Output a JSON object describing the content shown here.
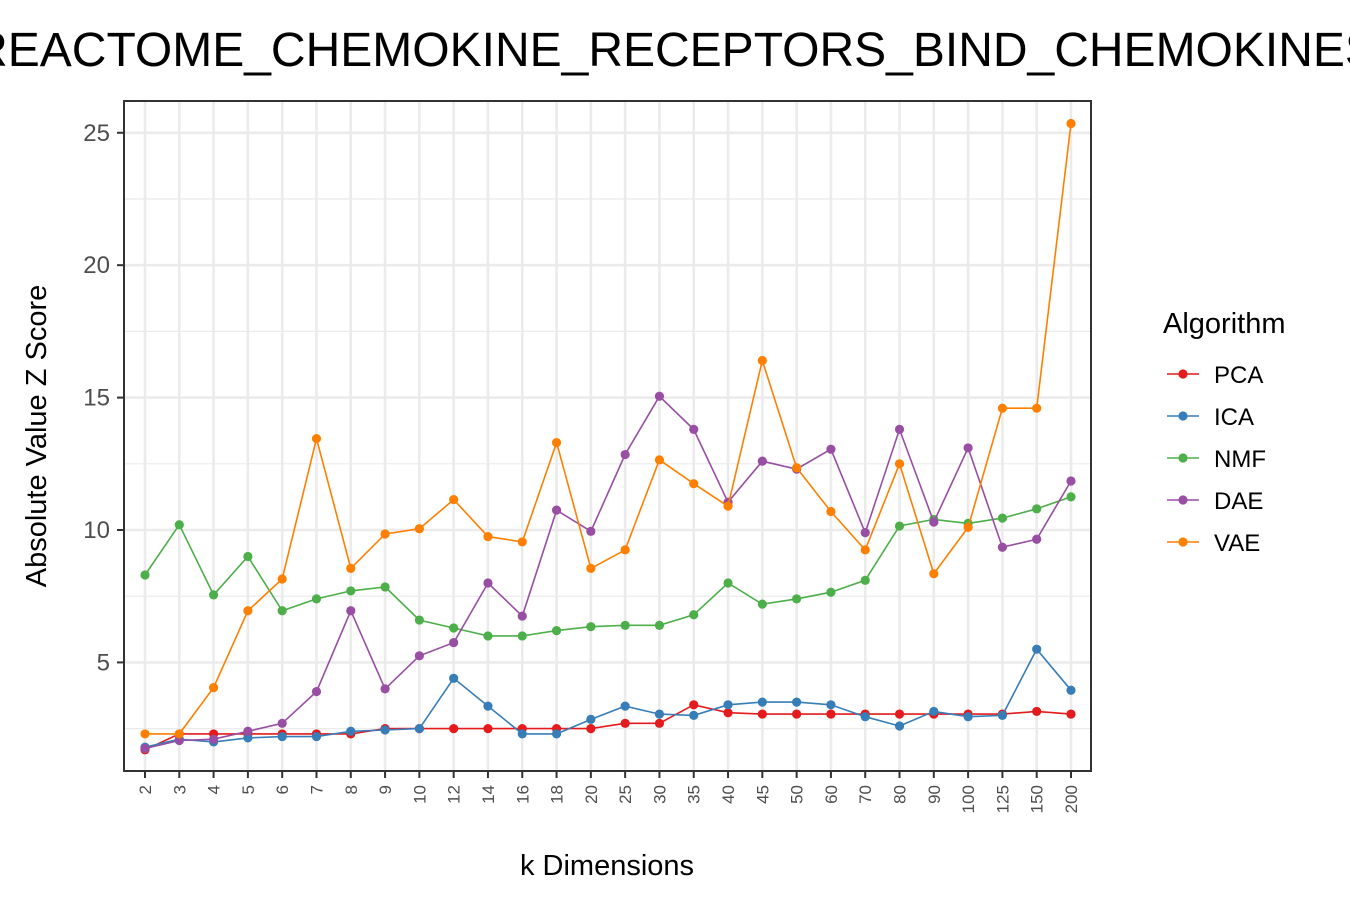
{
  "chart_data": {
    "type": "line",
    "title": "REACTOME_CHEMOKINE_RECEPTORS_BIND_CHEMOKINES",
    "xlabel": "k Dimensions",
    "ylabel": "Absolute Value Z Score",
    "categories": [
      "2",
      "3",
      "4",
      "5",
      "6",
      "7",
      "8",
      "9",
      "10",
      "12",
      "14",
      "16",
      "18",
      "20",
      "25",
      "30",
      "35",
      "40",
      "45",
      "50",
      "60",
      "70",
      "80",
      "90",
      "100",
      "125",
      "150",
      "200"
    ],
    "yticks": [
      5,
      10,
      15,
      20,
      25
    ],
    "ylim": [
      0.9,
      26.2
    ],
    "grid": true,
    "legend": {
      "title": "Algorithm",
      "position": "right"
    },
    "series": [
      {
        "name": "PCA",
        "color": "#e41a1c",
        "values": [
          1.7,
          2.3,
          2.3,
          2.3,
          2.3,
          2.3,
          2.3,
          2.5,
          2.5,
          2.5,
          2.5,
          2.5,
          2.5,
          2.5,
          2.7,
          2.7,
          3.4,
          3.1,
          3.05,
          3.05,
          3.05,
          3.05,
          3.05,
          3.05,
          3.05,
          3.05,
          3.15,
          3.05
        ]
      },
      {
        "name": "ICA",
        "color": "#377eb8",
        "values": [
          1.8,
          2.1,
          2.0,
          2.15,
          2.2,
          2.2,
          2.4,
          2.45,
          2.5,
          4.4,
          3.35,
          2.3,
          2.3,
          2.85,
          3.35,
          3.05,
          3.0,
          3.4,
          3.5,
          3.5,
          3.4,
          2.95,
          2.6,
          3.15,
          2.95,
          3.0,
          5.5,
          3.95
        ]
      },
      {
        "name": "NMF",
        "color": "#4daf4a",
        "values": [
          8.3,
          10.2,
          7.55,
          9.0,
          6.95,
          7.4,
          7.7,
          7.85,
          6.6,
          6.3,
          6.0,
          6.0,
          6.2,
          6.35,
          6.4,
          6.4,
          6.8,
          8.0,
          7.2,
          7.4,
          7.65,
          8.1,
          10.15,
          10.4,
          10.25,
          10.45,
          10.8,
          11.25
        ]
      },
      {
        "name": "DAE",
        "color": "#984ea3",
        "values": [
          1.75,
          2.05,
          2.1,
          2.4,
          2.7,
          3.9,
          6.95,
          4.0,
          5.25,
          5.75,
          8.0,
          6.75,
          10.75,
          9.95,
          12.85,
          15.05,
          13.8,
          11.05,
          12.6,
          12.3,
          13.05,
          9.9,
          13.8,
          10.3,
          13.1,
          9.35,
          9.65,
          11.85
        ]
      },
      {
        "name": "VAE",
        "color": "#ff7f00",
        "values": [
          2.3,
          2.3,
          4.05,
          6.95,
          8.15,
          13.45,
          8.55,
          9.85,
          10.05,
          11.15,
          9.75,
          9.55,
          13.3,
          8.55,
          9.25,
          12.65,
          11.75,
          10.9,
          16.4,
          12.35,
          10.7,
          9.25,
          12.5,
          8.35,
          10.1,
          14.6,
          14.6,
          25.35
        ]
      }
    ]
  }
}
